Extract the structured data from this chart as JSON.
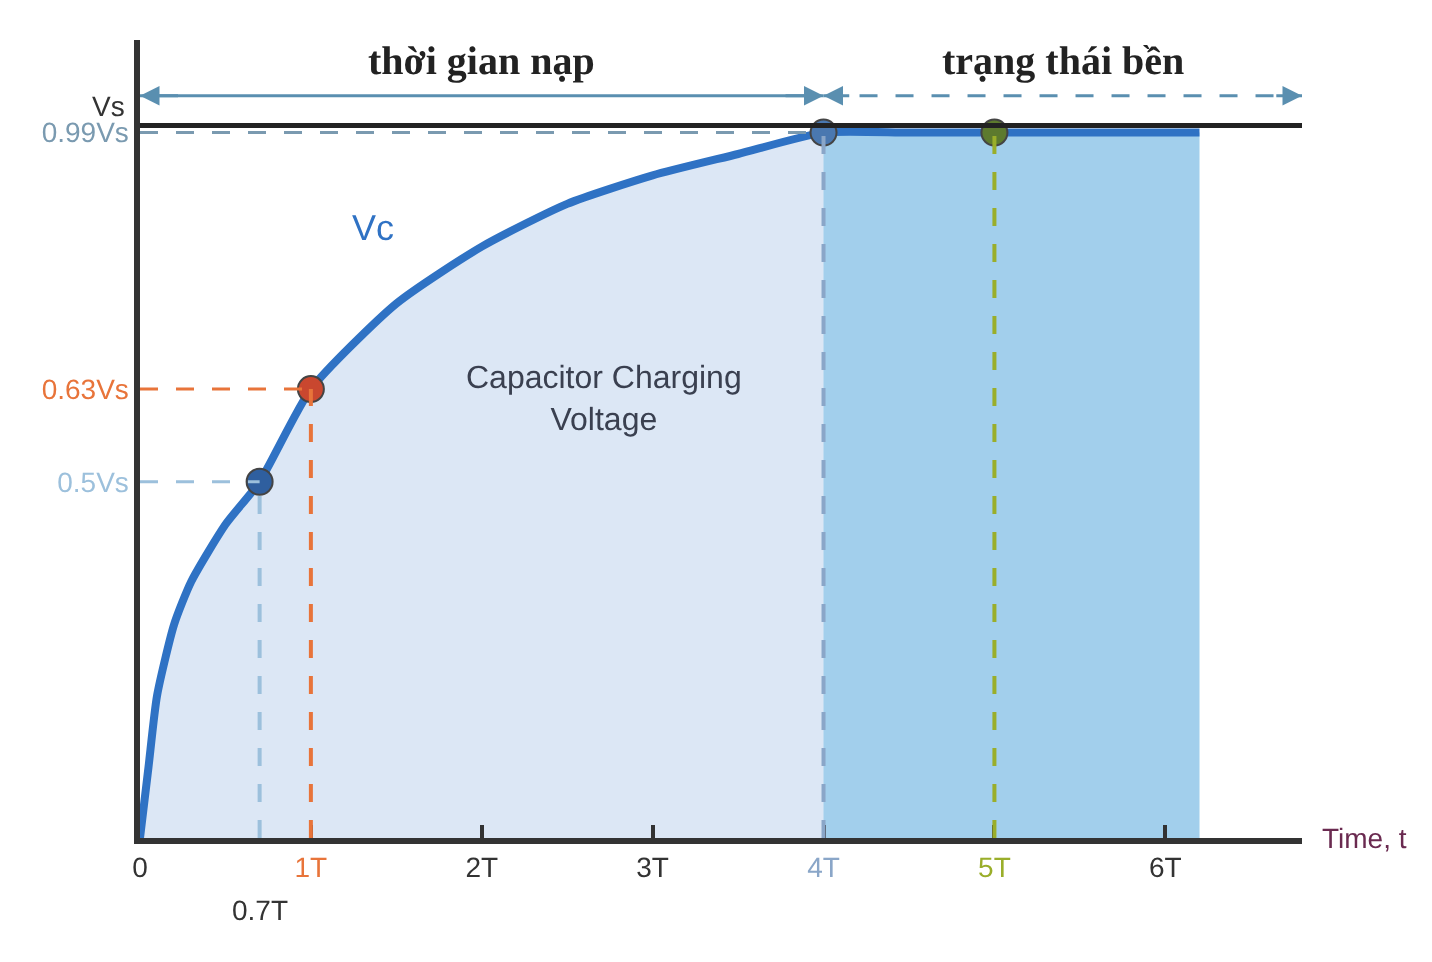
{
  "chart_data": {
    "type": "area",
    "xlabel": "Time, t",
    "xlim": [
      0,
      6.8
    ],
    "ylim": [
      0,
      1.12
    ],
    "xticks": [
      {
        "value": 0,
        "label": "0"
      },
      {
        "value": 1,
        "label": "1T"
      },
      {
        "value": 2,
        "label": "2T"
      },
      {
        "value": 3,
        "label": "3T"
      },
      {
        "value": 4,
        "label": "4T"
      },
      {
        "value": 5,
        "label": "5T"
      },
      {
        "value": 6,
        "label": "6T"
      }
    ],
    "yticks": [
      {
        "value": 0.5,
        "label": "0.5Vs"
      },
      {
        "value": 0.63,
        "label": "0.63Vs"
      },
      {
        "value": 0.99,
        "label": "0.99Vs"
      }
    ],
    "grid": false,
    "series": [
      {
        "name": "Vc",
        "color": "#2f72c4",
        "x": [
          0,
          0.05,
          0.1,
          0.2,
          0.3,
          0.5,
          0.7,
          1,
          1.5,
          2,
          2.5,
          3,
          3.5,
          4,
          4.5,
          5,
          5.5,
          6.2
        ],
        "values": [
          0,
          0.1,
          0.2,
          0.3,
          0.36,
          0.44,
          0.5,
          0.63,
          0.75,
          0.83,
          0.89,
          0.93,
          0.96,
          0.99,
          0.99,
          0.99,
          0.99,
          0.99
        ]
      },
      {
        "type": "scatter",
        "marker": "circle",
        "x": [
          0.7,
          1,
          4,
          5
        ],
        "values": [
          0.5,
          0.63,
          0.99,
          0.99
        ],
        "colors": [
          "#2f5f9f",
          "#c9472f",
          "#4a78b0",
          "#5d7a2e"
        ]
      }
    ],
    "ref_lines": [
      {
        "axis": "y",
        "value": 1,
        "label": "Vs",
        "color": "#222222",
        "line_style": "solid"
      },
      {
        "axis": "y",
        "value": 0.99,
        "color": "#7a9ab0",
        "line_style": "dashed"
      },
      {
        "axis": "y",
        "value": 0.63,
        "color": "#e8743a",
        "line_style": "dashed"
      },
      {
        "axis": "y",
        "value": 0.5,
        "color": "#9cc0dc",
        "line_style": "dashed"
      },
      {
        "axis": "x",
        "value": 0.7,
        "label": "0.7T",
        "color": "#9cc0dc",
        "line_style": "dashed"
      },
      {
        "axis": "x",
        "value": 1,
        "color": "#e8743a",
        "line_style": "dashed"
      },
      {
        "axis": "x",
        "value": 4,
        "color": "#8aa6c8",
        "line_style": "dashed"
      },
      {
        "axis": "x",
        "value": 5,
        "color": "#9aae2a",
        "line_style": "dashed"
      }
    ],
    "bands": [
      {
        "axis": "x",
        "from": 4,
        "to": 6.2,
        "color": "#a9dcf2"
      }
    ],
    "annotations": [
      "Capacitor Charging Voltage",
      "thời gian nạp",
      "trạng thái bền"
    ]
  }
}
